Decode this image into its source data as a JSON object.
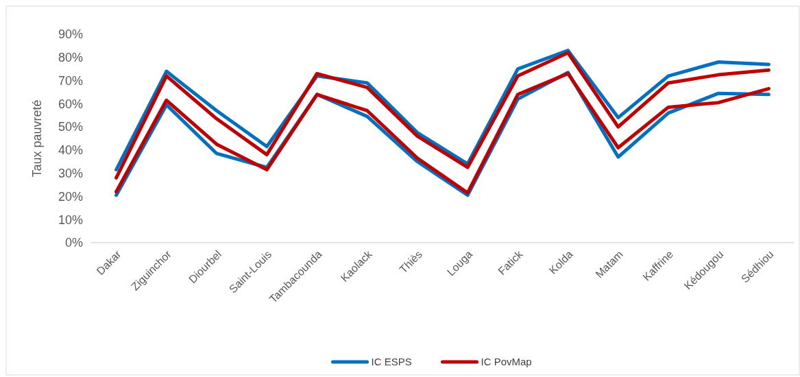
{
  "chart_data": {
    "type": "line",
    "ylabel": "Taux pauvreté",
    "categories": [
      "Dakar",
      "Ziguinchor",
      "Diourbel",
      "Saint-Louis",
      "Tambacounda",
      "Kaolack",
      "Thiès",
      "Louga",
      "Fatick",
      "Kolda",
      "Matam",
      "Kaffrine",
      "Kédougou",
      "Sédhiou"
    ],
    "series": [
      {
        "name": "IC ESPS",
        "color": "#0070c0",
        "values": [
          31.5,
          74,
          57,
          41.5,
          72,
          69,
          47.5,
          34,
          75,
          83,
          54,
          72,
          78,
          77
        ]
      },
      {
        "color": "#0070c0",
        "values": [
          20.5,
          59.5,
          38.5,
          32.5,
          64,
          54.5,
          35,
          20.5,
          62,
          73.5,
          37,
          56,
          64.5,
          64
        ]
      },
      {
        "name": "IC PovMap",
        "color": "#c00000",
        "values": [
          28,
          72,
          53.5,
          38,
          73,
          67,
          46,
          32.5,
          72,
          82,
          50,
          69,
          72.5,
          74.5
        ]
      },
      {
        "color": "#c00000",
        "values": [
          22,
          61.5,
          42.5,
          31.5,
          64,
          57,
          36.5,
          21.5,
          64,
          73,
          41,
          58.5,
          60.5,
          66.5
        ]
      }
    ],
    "ylim": [
      0,
      90
    ],
    "yticks": [
      {
        "value": 0,
        "label": "0%"
      },
      {
        "value": 10,
        "label": "10%"
      },
      {
        "value": 20,
        "label": "20%"
      },
      {
        "value": 30,
        "label": "30%"
      },
      {
        "value": 40,
        "label": "40%"
      },
      {
        "value": 50,
        "label": "50%"
      },
      {
        "value": 60,
        "label": "60%"
      },
      {
        "value": 70,
        "label": "70%"
      },
      {
        "value": 80,
        "label": "80%"
      },
      {
        "value": 90,
        "label": "90%"
      }
    ],
    "grid": false,
    "legend": "bottom",
    "marker": "none",
    "line_style": "solid"
  }
}
